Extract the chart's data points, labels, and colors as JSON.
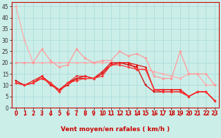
{
  "title": "",
  "xlabel": "Vent moyen/en rafales ( km/h )",
  "background_color": "#cceee8",
  "grid_color": "#aadddd",
  "x_values": [
    0,
    1,
    2,
    3,
    4,
    5,
    6,
    7,
    8,
    9,
    10,
    11,
    12,
    13,
    14,
    15,
    16,
    17,
    18,
    19,
    20,
    21,
    22,
    23
  ],
  "ylim": [
    0,
    47
  ],
  "xlim": [
    -0.5,
    23.5
  ],
  "y_ticks": [
    0,
    5,
    10,
    15,
    20,
    25,
    30,
    35,
    40,
    45
  ],
  "series": [
    {
      "y": [
        45,
        30,
        20,
        20,
        20,
        20,
        20,
        20,
        20,
        20,
        20,
        20,
        20,
        20,
        18,
        17,
        16,
        15,
        14,
        13,
        15,
        15,
        10,
        10
      ],
      "color": "#ffaaaa",
      "marker": "D",
      "markersize": 1.8,
      "linewidth": 0.9
    },
    {
      "y": [
        20,
        20,
        20,
        26,
        21,
        18,
        19,
        26,
        22,
        20,
        21,
        21,
        25,
        23,
        24,
        22,
        14,
        13,
        13,
        25,
        15,
        15,
        15,
        10
      ],
      "color": "#ff9999",
      "marker": "D",
      "markersize": 1.8,
      "linewidth": 0.9
    },
    {
      "y": [
        12,
        10,
        11,
        13,
        11,
        7,
        11,
        13,
        13,
        13,
        15,
        19,
        20,
        19,
        18,
        10,
        7,
        7,
        7,
        7,
        5,
        7,
        7,
        3
      ],
      "color": "#cc0000",
      "marker": "s",
      "markersize": 1.8,
      "linewidth": 0.9
    },
    {
      "y": [
        11,
        10,
        11,
        14,
        10,
        8,
        10,
        13,
        14,
        13,
        16,
        20,
        20,
        20,
        19,
        18,
        8,
        8,
        8,
        8,
        5,
        7,
        7,
        3
      ],
      "color": "#dd1111",
      "marker": "^",
      "markersize": 2.0,
      "linewidth": 0.9
    },
    {
      "y": [
        11,
        10,
        12,
        14,
        11,
        8,
        11,
        14,
        14,
        13,
        16,
        19,
        20,
        20,
        17,
        17,
        8,
        8,
        8,
        8,
        5,
        7,
        7,
        3
      ],
      "color": "#ee2222",
      "marker": "v",
      "markersize": 2.0,
      "linewidth": 0.9
    },
    {
      "y": [
        11,
        10,
        11,
        13,
        11,
        7,
        11,
        12,
        13,
        13,
        14,
        19,
        19,
        18,
        17,
        17,
        8,
        7,
        7,
        7,
        5,
        7,
        7,
        3
      ],
      "color": "#ff3333",
      "marker": "D",
      "markersize": 1.8,
      "linewidth": 0.9
    }
  ],
  "arrow_color": "#cc3333",
  "xlabel_color": "#cc0000",
  "xlabel_fontsize": 6.5,
  "tick_label_color": "#cc0000",
  "ytick_label_color": "#333333",
  "tick_fontsize": 5.5,
  "ytick_fontsize": 5.5,
  "spine_color": "#cc0000"
}
